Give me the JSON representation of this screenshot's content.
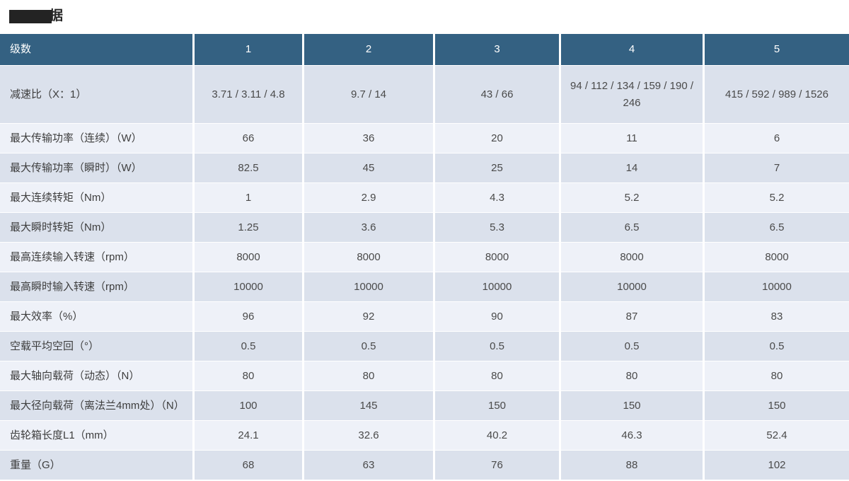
{
  "page": {
    "title_visible_char": "据"
  },
  "colors": {
    "header_bg": "#346182",
    "row_dark": "#dbe1ec",
    "row_light": "#eef1f8"
  },
  "table": {
    "header": {
      "label": "级数",
      "stages": [
        "1",
        "2",
        "3",
        "4",
        "5"
      ]
    },
    "rows": [
      {
        "label": "减速比（X：1）",
        "values": [
          "3.71 / 3.11 / 4.8",
          "9.7 / 14",
          "43 / 66",
          "94 / 112 / 134 / 159 / 190 / 246",
          "415 / 592 / 989 / 1526"
        ]
      },
      {
        "label": "最大传输功率（连续）（W）",
        "values": [
          "66",
          "36",
          "20",
          "11",
          "6"
        ]
      },
      {
        "label": "最大传输功率（瞬时）（W）",
        "values": [
          "82.5",
          "45",
          "25",
          "14",
          "7"
        ]
      },
      {
        "label": "最大连续转矩（Nm）",
        "values": [
          "1",
          "2.9",
          "4.3",
          "5.2",
          "5.2"
        ]
      },
      {
        "label": "最大瞬时转矩（Nm）",
        "values": [
          "1.25",
          "3.6",
          "5.3",
          "6.5",
          "6.5"
        ]
      },
      {
        "label": "最高连续输入转速（rpm）",
        "values": [
          "8000",
          "8000",
          "8000",
          "8000",
          "8000"
        ]
      },
      {
        "label": "最高瞬时输入转速（rpm）",
        "values": [
          "10000",
          "10000",
          "10000",
          "10000",
          "10000"
        ]
      },
      {
        "label": "最大效率（%）",
        "values": [
          "96",
          "92",
          "90",
          "87",
          "83"
        ]
      },
      {
        "label": "空载平均空回（°）",
        "values": [
          "0.5",
          "0.5",
          "0.5",
          "0.5",
          "0.5"
        ]
      },
      {
        "label": "最大轴向载荷（动态）（N）",
        "values": [
          "80",
          "80",
          "80",
          "80",
          "80"
        ]
      },
      {
        "label": "最大径向载荷（离法兰4mm处）（N）",
        "values": [
          "100",
          "145",
          "150",
          "150",
          "150"
        ]
      },
      {
        "label": "齿轮箱长度L1（mm）",
        "values": [
          "24.1",
          "32.6",
          "40.2",
          "46.3",
          "52.4"
        ]
      },
      {
        "label": "重量（G）",
        "values": [
          "68",
          "63",
          "76",
          "88",
          "102"
        ]
      }
    ]
  }
}
